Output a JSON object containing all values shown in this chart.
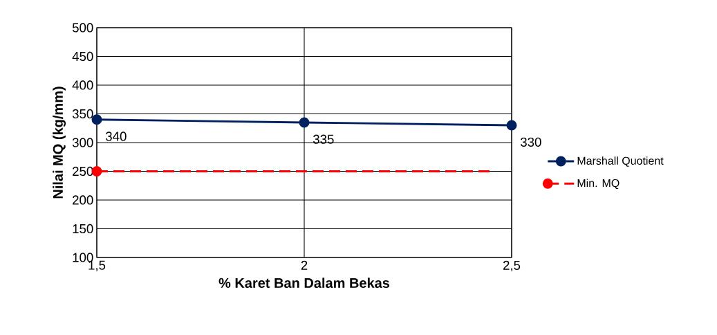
{
  "chart_data": {
    "type": "line",
    "xlabel": "% Karet Ban Dalam Bekas",
    "ylabel": "Nilai MQ (kg/mm)",
    "x": [
      1.5,
      2,
      2.5
    ],
    "series": [
      {
        "name": "Marshall Quotient",
        "color": "#002060",
        "values": [
          340,
          335,
          330
        ],
        "value_labels": [
          "340",
          "335",
          "330"
        ]
      },
      {
        "name": "Min. MQ",
        "color": "#ff0000",
        "x": [
          1.5,
          2.45
        ],
        "values": [
          250,
          250
        ],
        "line_style": "dashed"
      }
    ],
    "xlim": [
      1.5,
      2.5
    ],
    "ylim": [
      100,
      500
    ],
    "xticks": [
      {
        "value": 1.5,
        "label": "1,5"
      },
      {
        "value": 2,
        "label": "2"
      },
      {
        "value": 2.5,
        "label": "2,5"
      }
    ],
    "yticks": [
      100,
      150,
      200,
      250,
      300,
      350,
      400,
      450,
      500
    ],
    "grid": true,
    "legend": "right",
    "marker": "circle"
  }
}
